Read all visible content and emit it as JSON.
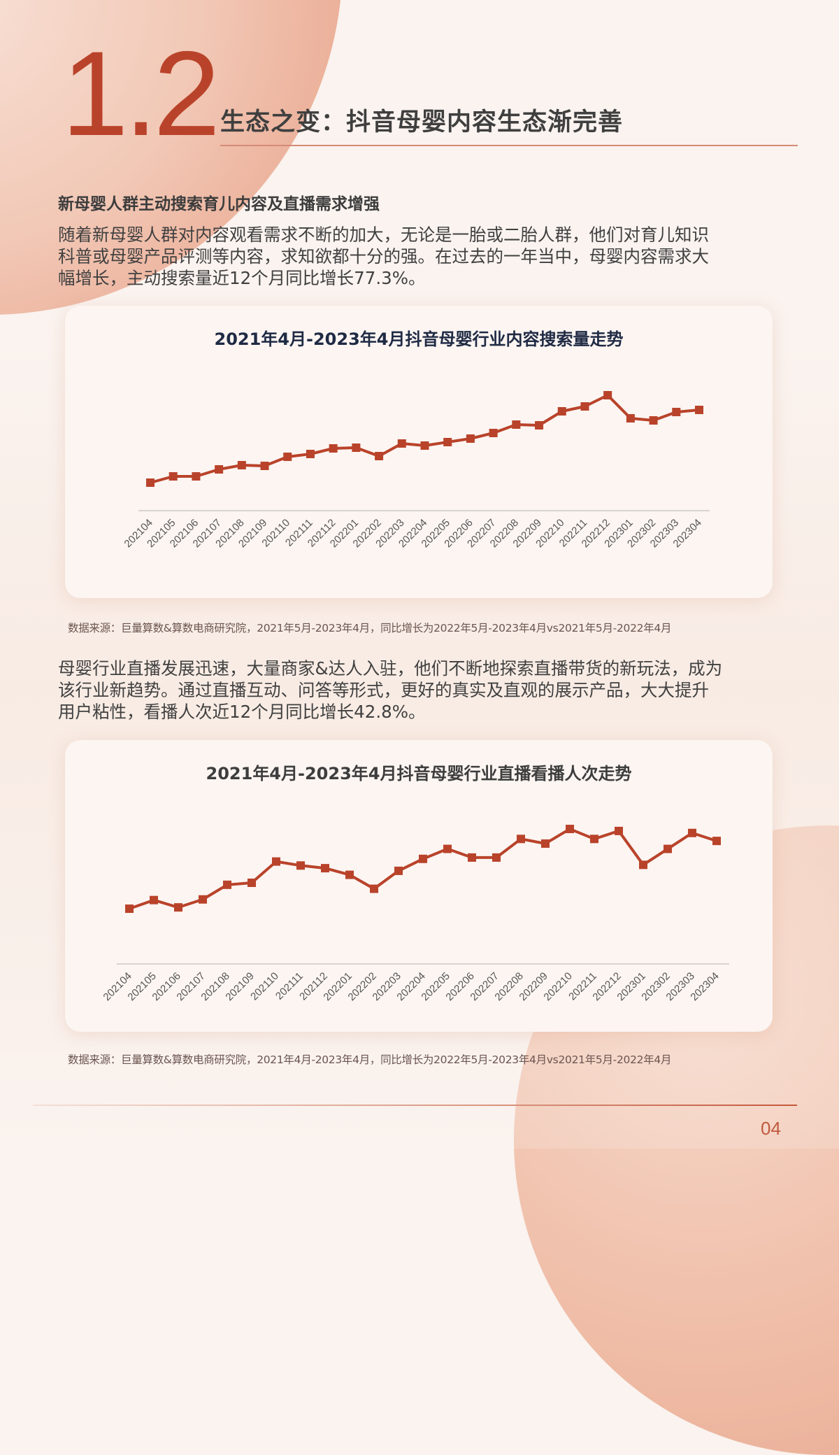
{
  "header": {
    "section_number": "1.2",
    "title": "生态之变：抖音母婴内容生态渐完善"
  },
  "section1": {
    "heading": "新母婴人群主动搜索育儿内容及直播需求增强",
    "paragraph_lines": [
      "随着新母婴人群对内容观看需求不断的加大，无论是一胎或二胎人群，他们对育儿知识",
      "科普或母婴产品评测等内容，求知欲都十分的强。在过去的一年当中，母婴内容需求大",
      "幅增长，主动搜索量近12个月同比增长77.3%。"
    ],
    "source": "数据来源：巨量算数&算数电商研究院，2021年5月-2023年4月，同比增长为2022年5月-2023年4月vs2021年5月-2022年4月"
  },
  "section2": {
    "paragraph_lines": [
      "母婴行业直播发展迅速，大量商家&达人入驻，他们不断地探索直播带货的新玩法，成为",
      "该行业新趋势。通过直播互动、问答等形式，更好的真实及直观的展示产品，大大提升",
      "用户粘性，看播人次近12个月同比增长42.8%。"
    ],
    "source": "数据来源：巨量算数&算数电商研究院，2021年4月-2023年4月，同比增长为2022年5月-2023年4月vs2021年5月-2022年4月"
  },
  "footer": {
    "page_number": "04"
  },
  "colors": {
    "accent": "#b9432a",
    "line": "#b9432a",
    "axis": "#d9d4d1"
  },
  "chart_data": [
    {
      "type": "line",
      "title": "2021年4月-2023年4月抖音母婴行业内容搜索量走势",
      "xlabel": "",
      "ylabel": "",
      "grid": false,
      "legend": null,
      "y_axis_visible": false,
      "note": "Relative index values (no y-axis shown); estimated from marker heights above baseline",
      "categories": [
        "202104",
        "202105",
        "202106",
        "202107",
        "202108",
        "202109",
        "202110",
        "202111",
        "202112",
        "202201",
        "202202",
        "202203",
        "202204",
        "202205",
        "202206",
        "202207",
        "202208",
        "202209",
        "202210",
        "202211",
        "202212",
        "202301",
        "202302",
        "202303",
        "202304"
      ],
      "values": [
        38,
        47,
        47,
        57,
        63,
        62,
        75,
        79,
        87,
        88,
        76,
        94,
        91,
        96,
        101,
        109,
        121,
        120,
        140,
        147,
        163,
        130,
        127,
        139,
        142
      ],
      "ylim": [
        0,
        170
      ]
    },
    {
      "type": "line",
      "title": "2021年4月-2023年4月抖音母婴行业直播看播人次走势",
      "xlabel": "",
      "ylabel": "",
      "grid": false,
      "legend": null,
      "y_axis_visible": false,
      "note": "Relative index values (no y-axis shown); estimated from marker heights above baseline",
      "categories": [
        "202104",
        "202105",
        "202106",
        "202107",
        "202108",
        "202109",
        "202110",
        "202111",
        "202112",
        "202201",
        "202202",
        "202203",
        "202204",
        "202205",
        "202206",
        "202207",
        "202208",
        "202209",
        "202210",
        "202211",
        "202212",
        "202301",
        "202302",
        "202303",
        "202304"
      ],
      "values": [
        81,
        94,
        83,
        95,
        117,
        120,
        152,
        146,
        142,
        132,
        111,
        138,
        156,
        171,
        158,
        158,
        186,
        179,
        201,
        186,
        198,
        147,
        171,
        195,
        183
      ],
      "ylim": [
        0,
        220
      ]
    }
  ]
}
